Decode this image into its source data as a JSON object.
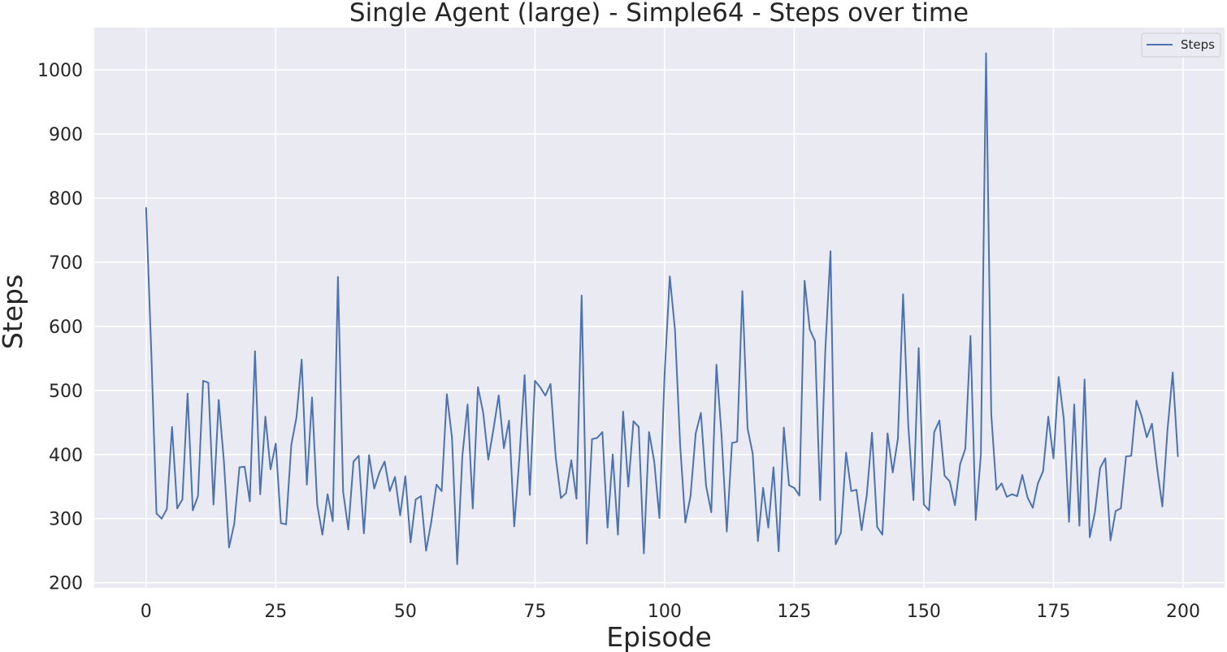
{
  "chart_data": {
    "type": "line",
    "title": "Single Agent (large) - Simple64 - Steps over time",
    "xlabel": "Episode",
    "ylabel": "Steps",
    "xlim": [
      -10,
      208
    ],
    "ylim": [
      192,
      1066
    ],
    "xticks": [
      0,
      25,
      50,
      75,
      100,
      125,
      150,
      175,
      200
    ],
    "yticks": [
      200,
      300,
      400,
      500,
      600,
      700,
      800,
      900,
      1000
    ],
    "grid": true,
    "background": "#eaeaf2",
    "legend_position": "upper right",
    "series": [
      {
        "name": "Steps",
        "color": "#4c72b0",
        "x_start": 0,
        "x_step": 1,
        "values": [
          785,
          560,
          308,
          300,
          315,
          443,
          316,
          330,
          495,
          313,
          335,
          515,
          512,
          322,
          485,
          390,
          255,
          292,
          380,
          381,
          327,
          561,
          338,
          459,
          377,
          417,
          293,
          291,
          415,
          458,
          548,
          353,
          489,
          322,
          275,
          338,
          296,
          677,
          342,
          283,
          389,
          398,
          277,
          399,
          347,
          372,
          389,
          343,
          365,
          305,
          366,
          263,
          330,
          335,
          250,
          295,
          353,
          343,
          494,
          426,
          229,
          398,
          478,
          316,
          505,
          466,
          392,
          440,
          492,
          410,
          453,
          288,
          395,
          524,
          337,
          515,
          505,
          492,
          510,
          396,
          332,
          340,
          391,
          331,
          648,
          261,
          424,
          426,
          435,
          286,
          400,
          275,
          467,
          350,
          452,
          443,
          246,
          435,
          389,
          301,
          525,
          678,
          595,
          415,
          294,
          335,
          433,
          465,
          351,
          310,
          540,
          428,
          280,
          418,
          420,
          655,
          441,
          401,
          265,
          348,
          286,
          380,
          249,
          442,
          352,
          348,
          336,
          671,
          595,
          577,
          329,
          563,
          717,
          260,
          278,
          403,
          343,
          345,
          282,
          337,
          434,
          287,
          275,
          433,
          372,
          425,
          650,
          445,
          329,
          566,
          322,
          313,
          435,
          453,
          367,
          358,
          321,
          385,
          409,
          585,
          298,
          400,
          1026,
          463,
          345,
          355,
          334,
          338,
          335,
          368,
          333,
          317,
          355,
          374,
          459,
          394,
          521,
          455,
          295,
          478,
          289,
          517,
          271,
          310,
          379,
          394,
          266,
          312,
          316,
          397,
          398,
          484,
          460,
          427,
          448,
          378,
          319,
          439,
          528,
          397
        ]
      }
    ]
  }
}
